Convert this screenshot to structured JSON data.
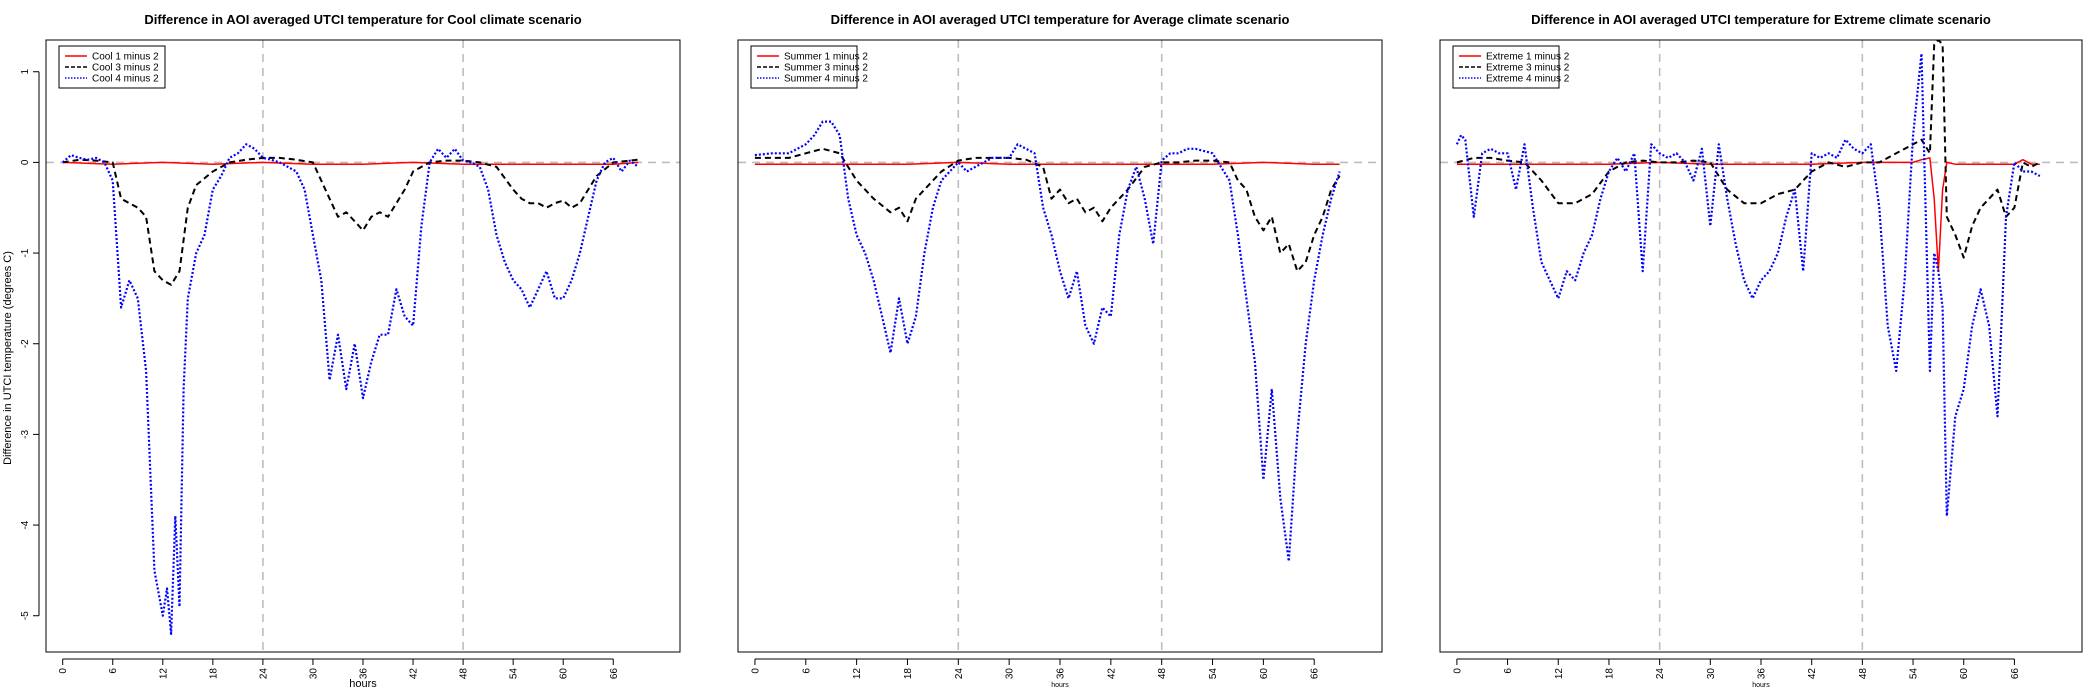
{
  "chart_data": [
    {
      "type": "line",
      "title": "Difference in AOI averaged UTCI temperature for Cool climate scenario",
      "xlabel": "hours",
      "ylabel": "Difference in UTCI temperature (degrees C)",
      "xlim": [
        -2,
        74
      ],
      "ylim": [
        -5.4,
        1.35
      ],
      "x_ticks": [
        0,
        6,
        12,
        18,
        24,
        30,
        36,
        42,
        48,
        54,
        60,
        66
      ],
      "y_ticks": [
        -5,
        -4,
        -3,
        -2,
        -1,
        0,
        1
      ],
      "vlines": [
        24,
        48
      ],
      "hline": 0,
      "legend_position": "top-left",
      "series": [
        {
          "name": "Cool 1 minus 2",
          "color": "#ff0000",
          "style": "solid",
          "x": [
            0,
            6,
            12,
            18,
            24,
            30,
            36,
            42,
            48,
            54,
            60,
            66,
            69
          ],
          "values": [
            0,
            -0.02,
            0,
            -0.02,
            0,
            -0.02,
            -0.02,
            0,
            -0.02,
            -0.02,
            -0.02,
            -0.02,
            0
          ]
        },
        {
          "name": "Cool 3 minus 2",
          "color": "#000000",
          "style": "dashed",
          "x": [
            0,
            2,
            4,
            6,
            7,
            8,
            9,
            10,
            11,
            12,
            13,
            14,
            15,
            16,
            18,
            20,
            22,
            24,
            26,
            28,
            30,
            32,
            33,
            34,
            35,
            36,
            37,
            38,
            39,
            40,
            41,
            42,
            43,
            44,
            46,
            48,
            50,
            52,
            54,
            55,
            56,
            57,
            58,
            59,
            60,
            61,
            62,
            63,
            64,
            66,
            68,
            69
          ],
          "values": [
            0,
            0.03,
            0.02,
            0,
            -0.4,
            -0.45,
            -0.5,
            -0.6,
            -1.2,
            -1.3,
            -1.35,
            -1.2,
            -0.5,
            -0.25,
            -0.1,
            0,
            0.03,
            0.05,
            0.05,
            0.03,
            0,
            -0.4,
            -0.6,
            -0.55,
            -0.65,
            -0.75,
            -0.6,
            -0.55,
            -0.6,
            -0.45,
            -0.3,
            -0.1,
            -0.05,
            0,
            0.02,
            0.02,
            0,
            -0.05,
            -0.3,
            -0.4,
            -0.45,
            -0.45,
            -0.5,
            -0.45,
            -0.42,
            -0.5,
            -0.45,
            -0.3,
            -0.15,
            0,
            0.02,
            0.03
          ]
        },
        {
          "name": "Cool 4 minus 2",
          "color": "#0000ff",
          "style": "dotted",
          "x": [
            0,
            1,
            2,
            3,
            4,
            5,
            6,
            7,
            8,
            9,
            10,
            11,
            12,
            12.5,
            13,
            13.5,
            14,
            14.5,
            15,
            16,
            17,
            18,
            19,
            20,
            21,
            22,
            23,
            24,
            25,
            26,
            27,
            28,
            29,
            30,
            31,
            32,
            33,
            34,
            35,
            36,
            37,
            38,
            39,
            40,
            41,
            42,
            43,
            44,
            45,
            46,
            47,
            48,
            49,
            50,
            51,
            52,
            53,
            54,
            55,
            56,
            57,
            58,
            59,
            60,
            61,
            62,
            63,
            64,
            65,
            66,
            67,
            68,
            69
          ],
          "values": [
            0,
            0.08,
            0.05,
            0.03,
            0.05,
            0,
            -0.2,
            -1.6,
            -1.3,
            -1.5,
            -2.3,
            -4.5,
            -5.0,
            -4.7,
            -5.2,
            -3.9,
            -4.9,
            -2.5,
            -1.5,
            -1.0,
            -0.8,
            -0.3,
            -0.15,
            0.05,
            0.1,
            0.2,
            0.15,
            0.05,
            0.03,
            0,
            -0.05,
            -0.1,
            -0.3,
            -0.8,
            -1.3,
            -2.4,
            -1.9,
            -2.5,
            -2.0,
            -2.6,
            -2.2,
            -1.9,
            -1.9,
            -1.4,
            -1.7,
            -1.8,
            -0.7,
            0,
            0.15,
            0.05,
            0.15,
            0.02,
            0,
            -0.05,
            -0.3,
            -0.8,
            -1.1,
            -1.3,
            -1.4,
            -1.6,
            -1.4,
            -1.2,
            -1.5,
            -1.5,
            -1.3,
            -1.0,
            -0.6,
            -0.2,
            0,
            0.05,
            -0.1,
            0.02,
            -0.05
          ]
        }
      ]
    },
    {
      "type": "line",
      "title": "Difference in AOI averaged UTCI temperature for Average climate scenario",
      "xlabel": "hours",
      "ylabel": "",
      "xlim": [
        -2,
        74
      ],
      "ylim": [
        -5.4,
        1.35
      ],
      "x_ticks": [
        0,
        6,
        12,
        18,
        24,
        30,
        36,
        42,
        48,
        54,
        60,
        66
      ],
      "y_ticks": [],
      "vlines": [
        24,
        48
      ],
      "hline": 0,
      "legend_position": "top-left",
      "series": [
        {
          "name": "Summer 1 minus 2",
          "color": "#ff0000",
          "style": "solid",
          "x": [
            0,
            6,
            12,
            18,
            24,
            30,
            36,
            42,
            48,
            54,
            60,
            66,
            69
          ],
          "values": [
            -0.02,
            -0.02,
            -0.02,
            -0.02,
            0,
            -0.02,
            -0.02,
            -0.02,
            -0.02,
            -0.02,
            0,
            -0.02,
            -0.02
          ]
        },
        {
          "name": "Summer 3 minus 2",
          "color": "#000000",
          "style": "dashed",
          "x": [
            0,
            4,
            6,
            8,
            10,
            12,
            14,
            16,
            17,
            18,
            19,
            20,
            22,
            24,
            26,
            28,
            30,
            32,
            34,
            35,
            36,
            37,
            38,
            39,
            40,
            41,
            42,
            44,
            46,
            48,
            50,
            52,
            54,
            56,
            57,
            58,
            59,
            60,
            61,
            62,
            63,
            64,
            65,
            66,
            67,
            68,
            69
          ],
          "values": [
            0.05,
            0.05,
            0.1,
            0.15,
            0.1,
            -0.2,
            -0.4,
            -0.55,
            -0.5,
            -0.65,
            -0.4,
            -0.3,
            -0.1,
            0.02,
            0.05,
            0.05,
            0.05,
            0.03,
            -0.05,
            -0.4,
            -0.3,
            -0.45,
            -0.4,
            -0.55,
            -0.5,
            -0.65,
            -0.5,
            -0.3,
            -0.05,
            0,
            0,
            0.02,
            0.02,
            0,
            -0.2,
            -0.3,
            -0.6,
            -0.75,
            -0.6,
            -1.0,
            -0.9,
            -1.2,
            -1.1,
            -0.8,
            -0.6,
            -0.3,
            -0.15
          ]
        },
        {
          "name": "Summer 4 minus 2",
          "color": "#0000ff",
          "style": "dotted",
          "x": [
            0,
            2,
            4,
            6,
            7,
            8,
            9,
            10,
            11,
            12,
            13,
            14,
            15,
            16,
            17,
            18,
            19,
            20,
            21,
            22,
            23,
            24,
            25,
            26,
            28,
            30,
            31,
            32,
            33,
            34,
            35,
            36,
            37,
            38,
            39,
            40,
            41,
            42,
            43,
            44,
            45,
            46,
            47,
            48,
            49,
            50,
            51,
            52,
            54,
            56,
            57,
            58,
            59,
            60,
            61,
            62,
            63,
            64,
            65,
            66,
            67,
            68,
            69
          ],
          "values": [
            0.08,
            0.1,
            0.1,
            0.2,
            0.3,
            0.45,
            0.45,
            0.3,
            -0.4,
            -0.8,
            -1.0,
            -1.3,
            -1.7,
            -2.1,
            -1.5,
            -2.0,
            -1.7,
            -1.0,
            -0.5,
            -0.2,
            -0.1,
            0,
            -0.1,
            -0.05,
            0.05,
            0.05,
            0.2,
            0.15,
            0.1,
            -0.5,
            -0.8,
            -1.2,
            -1.5,
            -1.2,
            -1.8,
            -2.0,
            -1.6,
            -1.7,
            -0.8,
            -0.3,
            -0.05,
            -0.4,
            -0.9,
            0.02,
            0.1,
            0.1,
            0.15,
            0.15,
            0.1,
            -0.2,
            -0.8,
            -1.5,
            -2.2,
            -3.5,
            -2.5,
            -3.7,
            -4.4,
            -3.0,
            -2.0,
            -1.3,
            -0.8,
            -0.4,
            -0.1
          ]
        }
      ]
    },
    {
      "type": "line",
      "title": "Difference in AOI averaged UTCI temperature for Extreme climate scenario",
      "xlabel": "hours",
      "ylabel": "",
      "xlim": [
        -2,
        74
      ],
      "ylim": [
        -5.4,
        1.35
      ],
      "x_ticks": [
        0,
        6,
        12,
        18,
        24,
        30,
        36,
        42,
        48,
        54,
        60,
        66
      ],
      "y_ticks": [],
      "vlines": [
        24,
        48
      ],
      "hline": 0,
      "legend_position": "top-left",
      "series": [
        {
          "name": "Extreme 1 minus 2",
          "color": "#ff0000",
          "style": "solid",
          "x": [
            0,
            6,
            12,
            18,
            24,
            30,
            36,
            42,
            48,
            54,
            55,
            56,
            56.5,
            57,
            57.5,
            58,
            59,
            60,
            66,
            67,
            68,
            69
          ],
          "values": [
            -0.02,
            -0.02,
            -0.02,
            -0.02,
            0,
            -0.02,
            -0.02,
            -0.02,
            0,
            0,
            0.03,
            0.05,
            -0.4,
            -1.2,
            -0.3,
            0,
            -0.02,
            -0.02,
            -0.02,
            0.03,
            -0.02,
            -0.02
          ]
        },
        {
          "name": "Extreme 3 minus 2",
          "color": "#000000",
          "style": "dashed",
          "x": [
            0,
            2,
            4,
            6,
            8,
            10,
            12,
            14,
            16,
            18,
            20,
            22,
            24,
            26,
            28,
            30,
            32,
            34,
            36,
            38,
            40,
            42,
            44,
            46,
            48,
            50,
            52,
            54,
            55,
            56,
            56.5,
            57,
            57.5,
            58,
            59,
            60,
            61,
            62,
            63,
            64,
            65,
            66,
            67,
            68,
            69
          ],
          "values": [
            0,
            0.05,
            0.05,
            0.02,
            0,
            -0.2,
            -0.45,
            -0.45,
            -0.35,
            -0.1,
            0,
            0.02,
            0,
            0,
            0.02,
            0,
            -0.3,
            -0.45,
            -0.45,
            -0.35,
            -0.3,
            -0.1,
            0,
            -0.05,
            0,
            0,
            0.1,
            0.2,
            0.25,
            0.1,
            1.3,
            1.35,
            1.3,
            -0.6,
            -0.8,
            -1.05,
            -0.7,
            -0.5,
            -0.4,
            -0.3,
            -0.6,
            -0.5,
            0,
            -0.05,
            0
          ]
        },
        {
          "name": "Extreme 4 minus 2",
          "color": "#0000ff",
          "style": "dotted",
          "x": [
            0,
            0.5,
            1,
            2,
            3,
            4,
            5,
            6,
            7,
            8,
            9,
            10,
            11,
            12,
            13,
            14,
            15,
            16,
            17,
            18,
            19,
            20,
            21,
            22,
            23,
            24,
            25,
            26,
            27,
            28,
            29,
            30,
            31,
            32,
            33,
            34,
            35,
            36,
            37,
            38,
            39,
            40,
            41,
            42,
            43,
            44,
            45,
            46,
            47,
            48,
            49,
            50,
            51,
            52,
            53,
            54,
            55,
            56,
            56.5,
            57,
            57.5,
            58,
            59,
            60,
            61,
            62,
            63,
            64,
            65,
            66,
            67,
            68,
            69
          ],
          "values": [
            0.2,
            0.3,
            0.25,
            -0.6,
            0.1,
            0.15,
            0.1,
            0.1,
            -0.3,
            0.2,
            -0.5,
            -1.1,
            -1.3,
            -1.5,
            -1.2,
            -1.3,
            -1.0,
            -0.8,
            -0.4,
            -0.1,
            0.05,
            -0.1,
            0.1,
            -1.2,
            0.2,
            0.1,
            0.05,
            0.1,
            0,
            -0.2,
            0.15,
            -0.7,
            0.2,
            -0.4,
            -0.9,
            -1.3,
            -1.5,
            -1.3,
            -1.2,
            -1.0,
            -0.6,
            -0.3,
            -1.2,
            0.1,
            0.05,
            0.1,
            0.05,
            0.25,
            0.15,
            0.1,
            0.2,
            -0.5,
            -1.8,
            -2.3,
            -1.3,
            0.3,
            1.2,
            -2.3,
            -1.0,
            -1.2,
            -1.6,
            -3.9,
            -2.8,
            -2.5,
            -1.8,
            -1.4,
            -1.8,
            -2.8,
            -0.6,
            0,
            -0.1,
            -0.1,
            -0.15
          ]
        }
      ]
    }
  ]
}
